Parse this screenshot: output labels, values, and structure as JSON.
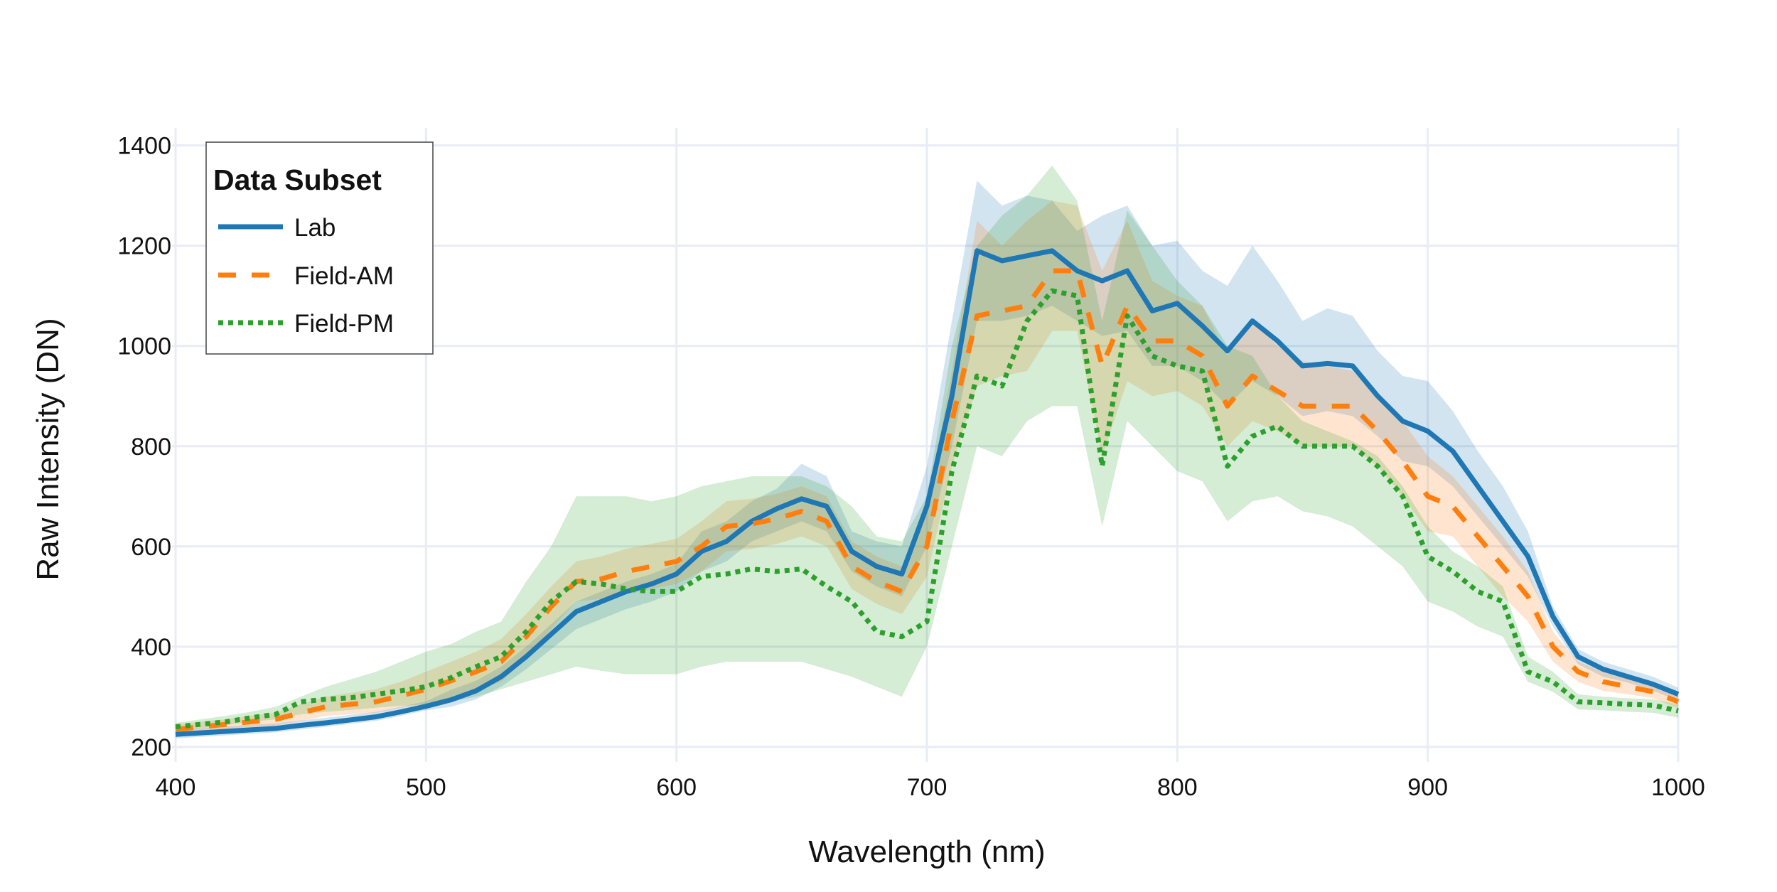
{
  "chart_data": {
    "type": "line",
    "title": "",
    "xlabel": "Wavelength (nm)",
    "ylabel": "Raw Intensity (DN)",
    "xlim": [
      400,
      1000
    ],
    "ylim": [
      170,
      1435
    ],
    "xticks": [
      400,
      500,
      600,
      700,
      800,
      900,
      1000
    ],
    "yticks": [
      200,
      400,
      600,
      800,
      1000,
      1200,
      1400
    ],
    "grid": true,
    "legend": {
      "title": "Data Subset",
      "position": "top-left"
    },
    "x": [
      400,
      410,
      420,
      430,
      440,
      450,
      460,
      470,
      480,
      490,
      500,
      510,
      520,
      530,
      540,
      550,
      560,
      570,
      580,
      590,
      600,
      610,
      620,
      630,
      640,
      650,
      660,
      670,
      680,
      690,
      700,
      710,
      720,
      730,
      740,
      750,
      760,
      770,
      780,
      790,
      800,
      810,
      820,
      830,
      840,
      850,
      860,
      870,
      880,
      890,
      900,
      910,
      920,
      930,
      940,
      950,
      960,
      970,
      980,
      990,
      1000
    ],
    "series": [
      {
        "name": "Lab",
        "color": "#1f77b4",
        "dash": "solid",
        "values": [
          225,
          228,
          231,
          234,
          237,
          243,
          248,
          254,
          260,
          270,
          281,
          294,
          312,
          340,
          380,
          425,
          470,
          490,
          510,
          525,
          545,
          590,
          610,
          650,
          675,
          695,
          680,
          590,
          560,
          545,
          680,
          900,
          1190,
          1170,
          1180,
          1190,
          1150,
          1130,
          1150,
          1070,
          1085,
          1040,
          990,
          1050,
          1010,
          960,
          965,
          960,
          900,
          850,
          830,
          790,
          720,
          650,
          580,
          460,
          380,
          355,
          340,
          325,
          305
        ],
        "upper": [
          235,
          238,
          241,
          244,
          247,
          253,
          258,
          264,
          270,
          280,
          291,
          314,
          332,
          360,
          400,
          445,
          490,
          510,
          530,
          545,
          565,
          630,
          650,
          690,
          715,
          765,
          740,
          630,
          610,
          600,
          760,
          1050,
          1330,
          1280,
          1300,
          1290,
          1230,
          1260,
          1280,
          1200,
          1210,
          1150,
          1120,
          1200,
          1130,
          1050,
          1075,
          1060,
          990,
          940,
          930,
          870,
          790,
          720,
          630,
          480,
          395,
          370,
          355,
          340,
          318
        ],
        "lower": [
          217,
          220,
          223,
          226,
          229,
          235,
          240,
          246,
          252,
          262,
          273,
          280,
          295,
          320,
          355,
          395,
          435,
          455,
          475,
          490,
          510,
          550,
          570,
          610,
          630,
          650,
          630,
          550,
          520,
          500,
          600,
          800,
          1050,
          1050,
          1060,
          1080,
          1050,
          1020,
          1030,
          960,
          960,
          930,
          880,
          930,
          900,
          860,
          870,
          860,
          820,
          770,
          760,
          720,
          660,
          600,
          540,
          440,
          365,
          340,
          328,
          312,
          292
        ]
      },
      {
        "name": "Field-AM",
        "color": "#ff7f0e",
        "dash": "dash",
        "values": [
          235,
          240,
          245,
          250,
          255,
          268,
          280,
          285,
          290,
          302,
          315,
          332,
          350,
          370,
          420,
          480,
          530,
          535,
          550,
          560,
          570,
          600,
          640,
          645,
          655,
          670,
          650,
          560,
          530,
          510,
          600,
          850,
          1060,
          1070,
          1080,
          1150,
          1150,
          960,
          1080,
          1010,
          1010,
          980,
          880,
          940,
          910,
          880,
          880,
          880,
          830,
          770,
          700,
          680,
          620,
          560,
          500,
          400,
          350,
          330,
          320,
          310,
          290
        ],
        "upper": [
          245,
          250,
          255,
          262,
          268,
          285,
          300,
          308,
          315,
          330,
          350,
          370,
          390,
          415,
          465,
          520,
          570,
          580,
          595,
          605,
          615,
          650,
          690,
          695,
          705,
          720,
          700,
          610,
          580,
          560,
          680,
          950,
          1250,
          1200,
          1250,
          1290,
          1280,
          1150,
          1250,
          1130,
          1100,
          1080,
          980,
          1050,
          1000,
          970,
          960,
          950,
          900,
          850,
          780,
          740,
          680,
          620,
          550,
          430,
          370,
          350,
          335,
          325,
          305
        ],
        "lower": [
          225,
          230,
          235,
          240,
          243,
          252,
          262,
          265,
          268,
          278,
          285,
          298,
          312,
          330,
          375,
          435,
          490,
          495,
          505,
          515,
          525,
          550,
          590,
          595,
          605,
          620,
          600,
          515,
          485,
          465,
          540,
          760,
          920,
          940,
          950,
          1030,
          1030,
          780,
          930,
          900,
          910,
          880,
          800,
          850,
          830,
          800,
          800,
          800,
          760,
          700,
          630,
          620,
          560,
          500,
          450,
          370,
          330,
          312,
          305,
          297,
          277
        ]
      },
      {
        "name": "Field-PM",
        "color": "#2ca02c",
        "dash": "dot",
        "values": [
          240,
          245,
          250,
          258,
          265,
          290,
          295,
          298,
          305,
          312,
          320,
          338,
          360,
          380,
          430,
          490,
          530,
          525,
          515,
          510,
          510,
          540,
          545,
          555,
          550,
          555,
          520,
          490,
          430,
          420,
          450,
          750,
          940,
          920,
          1050,
          1110,
          1100,
          760,
          1060,
          980,
          960,
          950,
          760,
          820,
          840,
          800,
          800,
          800,
          760,
          700,
          580,
          550,
          510,
          490,
          350,
          330,
          290,
          288,
          285,
          283,
          272
        ],
        "upper": [
          248,
          255,
          262,
          270,
          280,
          300,
          320,
          335,
          350,
          370,
          390,
          405,
          430,
          450,
          530,
          600,
          700,
          700,
          700,
          690,
          700,
          720,
          730,
          740,
          740,
          740,
          720,
          680,
          620,
          610,
          700,
          1000,
          1200,
          1260,
          1300,
          1360,
          1290,
          1050,
          1270,
          1200,
          1130,
          1080,
          1000,
          980,
          900,
          850,
          830,
          810,
          780,
          720,
          640,
          590,
          560,
          520,
          380,
          350,
          305,
          300,
          297,
          295,
          285
        ],
        "lower": [
          232,
          238,
          243,
          250,
          255,
          265,
          270,
          274,
          278,
          282,
          285,
          290,
          300,
          315,
          330,
          345,
          360,
          352,
          345,
          345,
          345,
          360,
          370,
          370,
          370,
          370,
          355,
          340,
          320,
          300,
          400,
          600,
          800,
          780,
          850,
          880,
          880,
          640,
          850,
          800,
          750,
          730,
          650,
          690,
          700,
          670,
          660,
          640,
          600,
          560,
          490,
          470,
          440,
          420,
          330,
          310,
          275,
          273,
          270,
          268,
          258
        ]
      }
    ]
  }
}
